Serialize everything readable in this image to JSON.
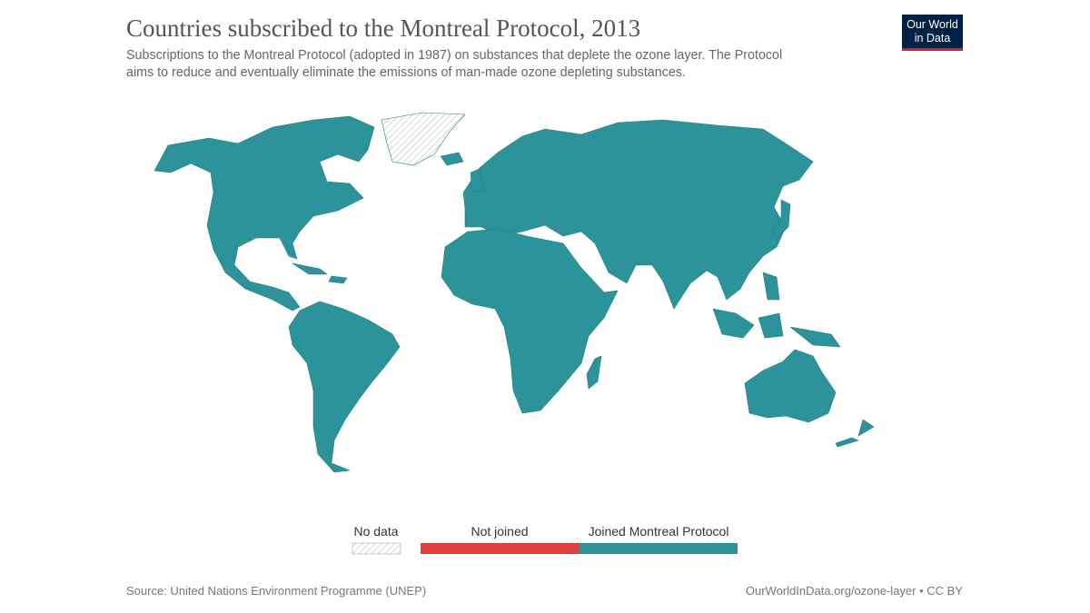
{
  "header": {
    "title": "Countries subscribed to the Montreal Protocol, 2013",
    "subtitle": [
      "Subscriptions to the Montreal Protocol (adopted in 1987) on substances that deplete the ozone layer. The Protocol",
      "aims to reduce and eventually eliminate the emissions of man-made ozone depleting substances."
    ],
    "logo": [
      "Our World",
      "in Data"
    ]
  },
  "legend": {
    "items": [
      {
        "label": "No data",
        "color": "#c8c8c8"
      },
      {
        "label": "Not joined",
        "color": "#e0403a"
      },
      {
        "label": "Joined Montreal Protocol",
        "color": "#2b9399"
      }
    ]
  },
  "footer": {
    "source": "Source: United Nations Environment Programme (UNEP)",
    "url": "OurWorldInData.org/ozone-layer • CC BY"
  }
}
